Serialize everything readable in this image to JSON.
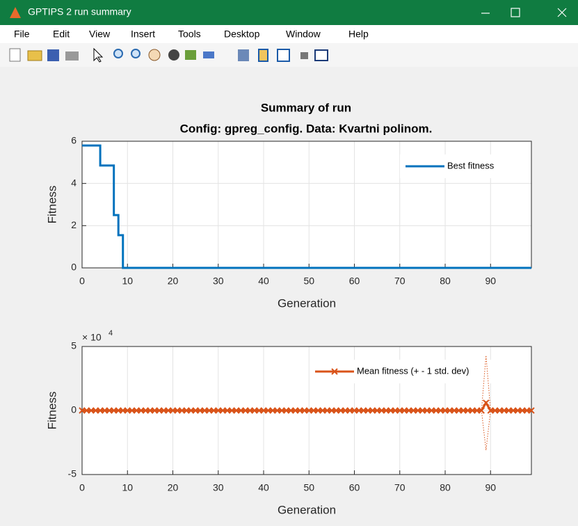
{
  "window": {
    "title": "GPTIPS 2 run summary",
    "menu": [
      "File",
      "Edit",
      "View",
      "Insert",
      "Tools",
      "Desktop",
      "Window",
      "Help"
    ]
  },
  "chart_data": [
    {
      "type": "line",
      "step": "post",
      "title": "Summary of run",
      "subtitle": "Config: gpreg_config. Data: Kvartni polinom.",
      "x_label": "Generation",
      "y_label": "Fitness",
      "grid": true,
      "legend": "top-right",
      "xlim": [
        0,
        99
      ],
      "xticks": [
        0,
        10,
        20,
        30,
        40,
        50,
        60,
        70,
        80,
        90
      ],
      "ylim": [
        0,
        6
      ],
      "yticks": [
        0,
        2,
        4,
        6
      ],
      "series": [
        {
          "name": "Best fitness",
          "color": "#0072bd",
          "x": [
            0,
            4,
            7,
            8,
            9,
            99
          ],
          "values": [
            5.8,
            4.85,
            2.5,
            1.55,
            0,
            0
          ]
        }
      ]
    },
    {
      "type": "errorline",
      "x_label": "Generation",
      "y_label": "Fitness",
      "grid": true,
      "legend": "top-right",
      "y_multiplier": {
        "base": "× 10",
        "exponent": "4"
      },
      "xlim": [
        0,
        99
      ],
      "xticks": [
        0,
        10,
        20,
        30,
        40,
        50,
        60,
        70,
        80,
        90
      ],
      "ylim": [
        -5,
        5
      ],
      "yticks": [
        -5,
        0,
        5
      ],
      "series": [
        {
          "name": "Mean fitness (+ - 1 std. dev)",
          "color": "#d95319",
          "x": [
            0,
            1,
            2,
            3,
            4,
            5,
            6,
            7,
            8,
            9,
            10,
            11,
            12,
            13,
            14,
            15,
            16,
            17,
            18,
            19,
            20,
            21,
            22,
            23,
            24,
            25,
            26,
            27,
            28,
            29,
            30,
            31,
            32,
            33,
            34,
            35,
            36,
            37,
            38,
            39,
            40,
            41,
            42,
            43,
            44,
            45,
            46,
            47,
            48,
            49,
            50,
            51,
            52,
            53,
            54,
            55,
            56,
            57,
            58,
            59,
            60,
            61,
            62,
            63,
            64,
            65,
            66,
            67,
            68,
            69,
            70,
            71,
            72,
            73,
            74,
            75,
            76,
            77,
            78,
            79,
            80,
            81,
            82,
            83,
            84,
            85,
            86,
            87,
            88,
            89,
            90,
            91,
            92,
            93,
            94,
            95,
            96,
            97,
            98,
            99
          ],
          "values": [
            0,
            0,
            0,
            0,
            0,
            0,
            0,
            0,
            0,
            0,
            0,
            0,
            0,
            0,
            0,
            0,
            0,
            0,
            0,
            0,
            0,
            0,
            0,
            0,
            0,
            0,
            0,
            0,
            0,
            0,
            0,
            0,
            0,
            0,
            0,
            0,
            0,
            0,
            0,
            0,
            0,
            0,
            0,
            0,
            0,
            0,
            0,
            0,
            0,
            0,
            0,
            0,
            0,
            0,
            0,
            0,
            0,
            0,
            0,
            0,
            0,
            0,
            0,
            0,
            0,
            0,
            0,
            0,
            0,
            0,
            0,
            0,
            0,
            0,
            0,
            0,
            0,
            0,
            0,
            0,
            0,
            0,
            0,
            0,
            0,
            0,
            0,
            0,
            0,
            0.6,
            0,
            0,
            0,
            0,
            0,
            0,
            0,
            0,
            0,
            0
          ],
          "std": [
            0,
            0,
            0,
            0,
            0,
            0,
            0,
            0,
            0,
            0,
            0,
            0,
            0,
            0,
            0,
            0,
            0,
            0,
            0,
            0,
            0,
            0,
            0,
            0,
            0,
            0,
            0,
            0,
            0,
            0,
            0,
            0,
            0,
            0,
            0,
            0,
            0,
            0,
            0,
            0,
            0,
            0,
            0,
            0,
            0,
            0,
            0,
            0,
            0,
            0,
            0,
            0,
            0,
            0,
            0,
            0,
            0,
            0,
            0,
            0,
            0,
            0,
            0,
            0,
            0,
            0,
            0,
            0,
            0,
            0,
            0,
            0,
            0,
            0,
            0,
            0,
            0,
            0,
            0,
            0,
            0,
            0,
            0,
            0,
            0,
            0,
            0,
            0,
            0,
            3.7,
            0,
            0,
            0,
            0,
            0,
            0,
            0,
            0,
            0,
            0
          ]
        }
      ]
    }
  ]
}
